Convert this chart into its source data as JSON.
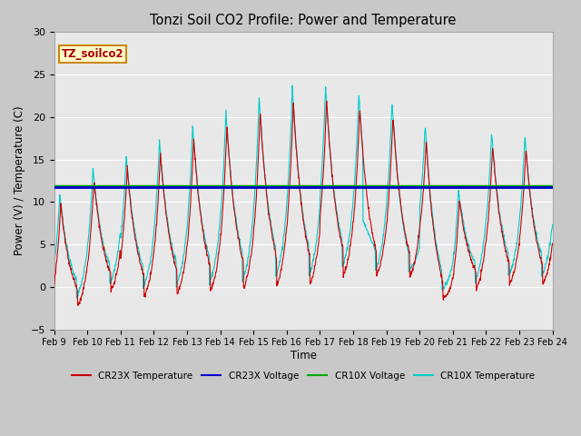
{
  "title": "Tonzi Soil CO2 Profile: Power and Temperature",
  "ylabel": "Power (V) / Temperature (C)",
  "xlabel": "Time",
  "ylim": [
    -5,
    30
  ],
  "yticks": [
    -5,
    0,
    5,
    10,
    15,
    20,
    25,
    30
  ],
  "plot_bg_color": "#e8e8e8",
  "fig_bg_color": "#c8c8c8",
  "cr23x_temp_color": "#cc0000",
  "cr23x_volt_color": "#0000cc",
  "cr10x_volt_color": "#00aa00",
  "cr10x_temp_color": "#00cccc",
  "cr23x_volt_value": 11.7,
  "cr10x_volt_value": 11.85,
  "watermark_text": "TZ_soilco2",
  "watermark_bg": "#ffffcc",
  "watermark_border": "#cc8800",
  "start_day": 9,
  "tick_labels": [
    "Feb 9",
    "Feb 10",
    "Feb 11",
    "Feb 12",
    "Feb 13",
    "Feb 14",
    "Feb 15",
    "Feb 16",
    "Feb 17",
    "Feb 18",
    "Feb 19",
    "Feb 20",
    "Feb 21",
    "Feb 22",
    "Feb 23",
    "Feb 24"
  ]
}
